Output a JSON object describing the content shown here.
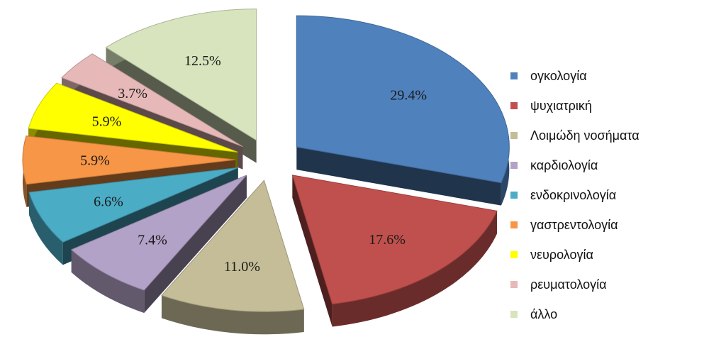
{
  "chart_data": {
    "type": "pie",
    "title": "",
    "slices": [
      {
        "label": "ογκολογία",
        "value": 29.4,
        "value_label": "29.4%",
        "color": "#4f81bd"
      },
      {
        "label": "ψυχιατρική",
        "value": 17.6,
        "value_label": "17.6%",
        "color": "#c0504d"
      },
      {
        "label": "Λοιμώδη νοσήματα",
        "value": 11.0,
        "value_label": "11.0%",
        "color": "#c4bd97"
      },
      {
        "label": "καρδιολογία",
        "value": 7.4,
        "value_label": "7.4%",
        "color": "#b3a2c7"
      },
      {
        "label": "ενδοκρινολογία",
        "value": 6.6,
        "value_label": "6.6%",
        "color": "#4bacc6"
      },
      {
        "label": "γαστρεντολογία",
        "value": 5.9,
        "value_label": "5.9%",
        "color": "#f79646"
      },
      {
        "label": "νευρολογία",
        "value": 5.9,
        "value_label": "5.9%",
        "color": "#ffff00"
      },
      {
        "label": "ρευματολογία",
        "value": 3.7,
        "value_label": "3.7%",
        "color": "#e6b9b8"
      },
      {
        "label": "άλλο",
        "value": 12.5,
        "value_label": "12.5%",
        "color": "#d7e4bd"
      }
    ],
    "legend_position": "right",
    "style": "3d-exploded"
  }
}
